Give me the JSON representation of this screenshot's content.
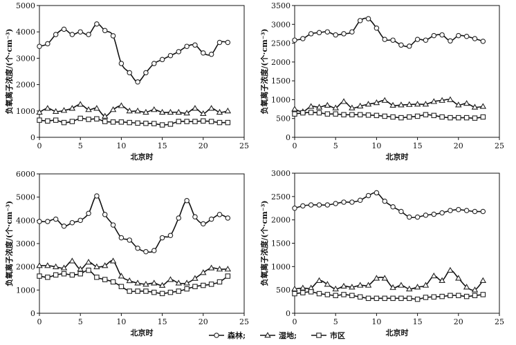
{
  "chart_data": [
    {
      "type": "line",
      "xlabel": "北京时",
      "ylabel": "负氧离子浓度/(个·cm⁻³)",
      "xlim": [
        0,
        25
      ],
      "ylim": [
        0,
        5000
      ],
      "xticks": [
        0,
        5,
        10,
        15,
        20,
        25
      ],
      "yticks": [
        0,
        1000,
        2000,
        3000,
        4000,
        5000
      ],
      "x": [
        0,
        1,
        2,
        3,
        4,
        5,
        6,
        7,
        8,
        9,
        10,
        11,
        12,
        13,
        14,
        15,
        16,
        17,
        18,
        19,
        20,
        21,
        22,
        23
      ],
      "series": [
        {
          "name": "森林",
          "marker": "circle",
          "values": [
            3450,
            3550,
            3900,
            4100,
            3900,
            4000,
            3900,
            4300,
            4050,
            3850,
            2800,
            2450,
            2100,
            2450,
            2800,
            2950,
            3100,
            3250,
            3450,
            3500,
            3200,
            3150,
            3600,
            3600
          ]
        },
        {
          "name": "湿地",
          "marker": "triangle",
          "values": [
            950,
            1100,
            980,
            1020,
            1100,
            1250,
            1050,
            1100,
            800,
            1050,
            1200,
            1000,
            1000,
            950,
            1050,
            950,
            950,
            950,
            920,
            1100,
            900,
            1100,
            950,
            1000
          ]
        },
        {
          "name": "市区",
          "marker": "square",
          "values": [
            650,
            620,
            650,
            560,
            600,
            720,
            680,
            700,
            600,
            580,
            580,
            560,
            540,
            530,
            520,
            470,
            500,
            600,
            600,
            600,
            620,
            600,
            560,
            560
          ]
        }
      ]
    },
    {
      "type": "line",
      "xlabel": "北京时",
      "ylabel": "负氧离子浓度/(个·cm⁻³)",
      "xlim": [
        0,
        25
      ],
      "ylim": [
        0,
        3500
      ],
      "xticks": [
        0,
        5,
        10,
        15,
        20,
        25
      ],
      "yticks": [
        0,
        500,
        1000,
        1500,
        2000,
        2500,
        3000,
        3500
      ],
      "x": [
        0,
        1,
        2,
        3,
        4,
        5,
        6,
        7,
        8,
        9,
        10,
        11,
        12,
        13,
        14,
        15,
        16,
        17,
        18,
        19,
        20,
        21,
        22,
        23
      ],
      "series": [
        {
          "name": "森林",
          "marker": "circle",
          "values": [
            2580,
            2620,
            2750,
            2780,
            2800,
            2720,
            2750,
            2800,
            3100,
            3150,
            2900,
            2600,
            2580,
            2450,
            2420,
            2600,
            2580,
            2700,
            2720,
            2560,
            2700,
            2680,
            2620,
            2550
          ]
        },
        {
          "name": "湿地",
          "marker": "triangle",
          "values": [
            750,
            680,
            820,
            800,
            850,
            780,
            950,
            780,
            830,
            880,
            920,
            980,
            850,
            860,
            870,
            880,
            880,
            950,
            980,
            1000,
            860,
            900,
            800,
            820
          ]
        },
        {
          "name": "市区",
          "marker": "square",
          "values": [
            620,
            650,
            660,
            650,
            620,
            620,
            600,
            600,
            600,
            590,
            580,
            560,
            540,
            520,
            540,
            560,
            600,
            580,
            540,
            520,
            520,
            520,
            510,
            540
          ]
        }
      ]
    },
    {
      "type": "line",
      "xlabel": "北京时",
      "ylabel": "负氧离子浓度/(个·cm⁻³)",
      "xlim": [
        0,
        25
      ],
      "ylim": [
        0,
        6000
      ],
      "xticks": [
        0,
        5,
        10,
        15,
        20,
        25
      ],
      "yticks": [
        0,
        1000,
        2000,
        3000,
        4000,
        5000,
        6000
      ],
      "x": [
        0,
        1,
        2,
        3,
        4,
        5,
        6,
        7,
        8,
        9,
        10,
        11,
        12,
        13,
        14,
        15,
        16,
        17,
        18,
        19,
        20,
        21,
        22,
        23
      ],
      "series": [
        {
          "name": "森林",
          "marker": "circle",
          "values": [
            3950,
            3950,
            4050,
            3750,
            3900,
            4000,
            4300,
            5050,
            4250,
            3800,
            3250,
            3150,
            2800,
            2650,
            2700,
            3250,
            3350,
            4100,
            4850,
            4150,
            3850,
            4050,
            4250,
            4100
          ]
        },
        {
          "name": "湿地",
          "marker": "triangle",
          "values": [
            2050,
            2050,
            2000,
            1950,
            2250,
            1900,
            2200,
            2000,
            2050,
            2250,
            1600,
            1400,
            1300,
            1250,
            1300,
            1200,
            1450,
            1300,
            1300,
            1500,
            1750,
            1950,
            1900,
            1900
          ]
        },
        {
          "name": "市区",
          "marker": "square",
          "values": [
            1600,
            1550,
            1650,
            1700,
            1650,
            1700,
            1850,
            1550,
            1450,
            1350,
            1150,
            950,
            950,
            950,
            900,
            850,
            900,
            950,
            1050,
            1150,
            1200,
            1250,
            1350,
            1600
          ]
        }
      ]
    },
    {
      "type": "line",
      "xlabel": "北京时",
      "ylabel": "负氧离子浓度/(个·cm⁻³)",
      "xlim": [
        0,
        25
      ],
      "ylim": [
        0,
        3000
      ],
      "xticks": [
        0,
        5,
        10,
        15,
        20,
        25
      ],
      "yticks": [
        0,
        500,
        1000,
        1500,
        2000,
        2500,
        3000
      ],
      "x": [
        0,
        1,
        2,
        3,
        4,
        5,
        6,
        7,
        8,
        9,
        10,
        11,
        12,
        13,
        14,
        15,
        16,
        17,
        18,
        19,
        20,
        21,
        22,
        23
      ],
      "series": [
        {
          "name": "森林",
          "marker": "circle",
          "values": [
            2250,
            2300,
            2320,
            2320,
            2320,
            2350,
            2380,
            2380,
            2420,
            2520,
            2580,
            2400,
            2280,
            2180,
            2060,
            2060,
            2100,
            2120,
            2150,
            2200,
            2220,
            2200,
            2180,
            2180
          ]
        },
        {
          "name": "湿地",
          "marker": "triangle",
          "values": [
            520,
            540,
            540,
            700,
            620,
            520,
            580,
            560,
            600,
            600,
            750,
            750,
            550,
            600,
            520,
            560,
            600,
            800,
            700,
            920,
            750,
            560,
            500,
            700
          ]
        },
        {
          "name": "市区",
          "marker": "square",
          "values": [
            420,
            440,
            460,
            420,
            400,
            380,
            400,
            380,
            350,
            320,
            320,
            320,
            320,
            320,
            320,
            300,
            340,
            350,
            360,
            380,
            380,
            360,
            380,
            400
          ]
        }
      ]
    }
  ],
  "legend": {
    "items": [
      {
        "label": "森林;",
        "marker": "circle"
      },
      {
        "label": "湿地;",
        "marker": "triangle"
      },
      {
        "label": "市区",
        "marker": "square"
      }
    ],
    "placement": "bottom-center"
  }
}
